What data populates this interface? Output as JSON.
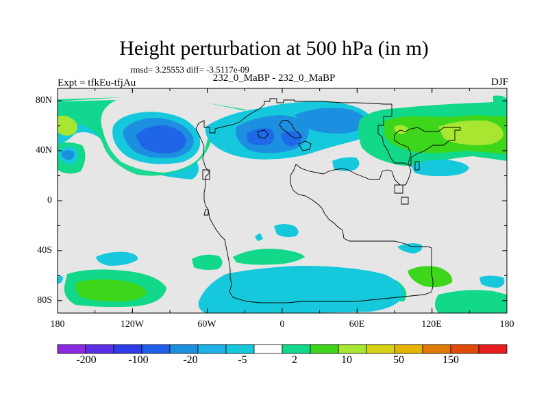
{
  "title": "Height perturbation at 500 hPa (in m)",
  "stats": "rmsd= 3.25553 diff= -3.5117e-09",
  "experiment": "Expt = tfkEu-tfjAu",
  "experiment_label": "232_0_MaBP - 232_0_MaBP",
  "season": "DJF",
  "map": {
    "projection": "cylindrical equidistant",
    "lon_range": [
      -180,
      180
    ],
    "lat_range": [
      -90,
      90
    ],
    "x_ticks": [
      "180",
      "120W",
      "60W",
      "0",
      "60E",
      "120E",
      "180"
    ],
    "y_ticks": [
      "80N",
      "40N",
      "0",
      "40S",
      "80S"
    ],
    "background_color": "#e6e6e6"
  },
  "colorbar": {
    "labels": [
      "-200",
      "-100",
      "-20",
      "-5",
      "2",
      "10",
      "50",
      "150"
    ],
    "colors": [
      "#8a2be2",
      "#5b2fe6",
      "#2d3be8",
      "#1f5fe8",
      "#1d8fe0",
      "#1fb2e6",
      "#16c8dc",
      "#ffffff",
      "#12d88a",
      "#3ed61a",
      "#a8e632",
      "#d8d214",
      "#e5b400",
      "#e07a00",
      "#e04a0a",
      "#e61e1e"
    ]
  }
}
